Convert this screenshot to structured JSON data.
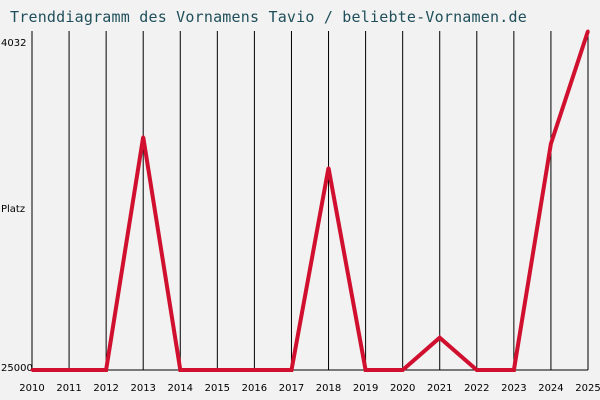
{
  "chart_data": {
    "type": "line",
    "title": "Trenddiagramm des Vornamens Tavio / beliebte-Vornamen.de",
    "ylabel": "Platz",
    "y_top_label": "4032",
    "y_bottom_label": "25000",
    "ylim": [
      25000,
      4032
    ],
    "grid": "vertical",
    "categories": [
      "2010",
      "2011",
      "2012",
      "2013",
      "2014",
      "2015",
      "2016",
      "2017",
      "2018",
      "2019",
      "2020",
      "2021",
      "2022",
      "2023",
      "2024",
      "2025"
    ],
    "series": [
      {
        "values": [
          25000,
          25000,
          25000,
          10580,
          25000,
          25000,
          25000,
          25000,
          12500,
          25000,
          25000,
          23000,
          25000,
          25000,
          11000,
          4032
        ]
      }
    ],
    "colors": {
      "line": "#d0102e",
      "background": "#f2f2f2",
      "grid": "#000000",
      "axis": "#000000",
      "title": "#1f4f5a"
    }
  }
}
